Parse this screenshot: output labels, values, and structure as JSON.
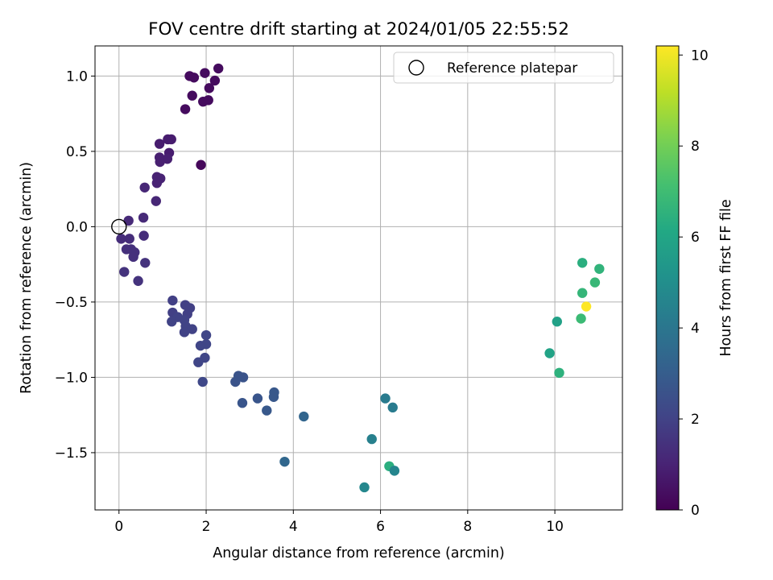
{
  "chart_data": {
    "type": "scatter",
    "title": "FOV centre drift starting at 2024/01/05 22:55:52",
    "xlabel": "Angular distance from reference (arcmin)",
    "ylabel": "Rotation from reference (arcmin)",
    "xlim": [
      -0.55,
      11.55
    ],
    "ylim": [
      -1.88,
      1.2
    ],
    "x_ticks": [
      "0",
      "2",
      "4",
      "6",
      "8",
      "10"
    ],
    "y_ticks": [
      "1.0",
      "0.5",
      "0.0",
      "−0.5",
      "−1.0",
      "−1.5"
    ],
    "grid": true,
    "legend": {
      "position": "top-right",
      "entries": [
        "Reference platepar"
      ]
    },
    "colorbar": {
      "label": "Hours from first FF file",
      "range": [
        0,
        10.2
      ],
      "ticks": [
        "0",
        "2",
        "4",
        "6",
        "8",
        "10"
      ],
      "colormap": "viridis"
    },
    "reference_point": {
      "x": 0,
      "y": 0
    },
    "points": [
      {
        "x": 2.28,
        "y": 1.05,
        "c": 0.3
      },
      {
        "x": 1.97,
        "y": 1.02,
        "c": 0.3
      },
      {
        "x": 1.62,
        "y": 1.0,
        "c": 0.3
      },
      {
        "x": 1.72,
        "y": 0.99,
        "c": 0.3
      },
      {
        "x": 2.2,
        "y": 0.97,
        "c": 0.3
      },
      {
        "x": 2.07,
        "y": 0.92,
        "c": 0.3
      },
      {
        "x": 1.68,
        "y": 0.87,
        "c": 0.3
      },
      {
        "x": 1.93,
        "y": 0.83,
        "c": 0.3
      },
      {
        "x": 2.05,
        "y": 0.84,
        "c": 0.3
      },
      {
        "x": 1.52,
        "y": 0.78,
        "c": 0.3
      },
      {
        "x": 1.88,
        "y": 0.41,
        "c": 0.2
      },
      {
        "x": 1.12,
        "y": 0.58,
        "c": 0.8
      },
      {
        "x": 1.2,
        "y": 0.58,
        "c": 0.8
      },
      {
        "x": 0.93,
        "y": 0.55,
        "c": 0.8
      },
      {
        "x": 1.15,
        "y": 0.49,
        "c": 0.8
      },
      {
        "x": 0.93,
        "y": 0.46,
        "c": 0.9
      },
      {
        "x": 1.11,
        "y": 0.45,
        "c": 0.9
      },
      {
        "x": 0.94,
        "y": 0.43,
        "c": 0.9
      },
      {
        "x": 0.87,
        "y": 0.33,
        "c": 1.0
      },
      {
        "x": 0.95,
        "y": 0.32,
        "c": 1.0
      },
      {
        "x": 0.87,
        "y": 0.29,
        "c": 1.0
      },
      {
        "x": 0.59,
        "y": 0.26,
        "c": 1.1
      },
      {
        "x": 0.85,
        "y": 0.17,
        "c": 1.1
      },
      {
        "x": 0.56,
        "y": 0.06,
        "c": 1.2
      },
      {
        "x": 0.22,
        "y": 0.04,
        "c": 1.2
      },
      {
        "x": 0.57,
        "y": -0.06,
        "c": 1.3
      },
      {
        "x": 0.05,
        "y": -0.08,
        "c": 1.3
      },
      {
        "x": 0.24,
        "y": -0.08,
        "c": 1.3
      },
      {
        "x": 0.17,
        "y": -0.15,
        "c": 1.4
      },
      {
        "x": 0.28,
        "y": -0.15,
        "c": 1.4
      },
      {
        "x": 0.36,
        "y": -0.17,
        "c": 1.4
      },
      {
        "x": 0.33,
        "y": -0.2,
        "c": 1.4
      },
      {
        "x": 0.6,
        "y": -0.24,
        "c": 1.5
      },
      {
        "x": 0.12,
        "y": -0.3,
        "c": 1.5
      },
      {
        "x": 0.44,
        "y": -0.36,
        "c": 1.5
      },
      {
        "x": 1.23,
        "y": -0.49,
        "c": 1.9
      },
      {
        "x": 1.52,
        "y": -0.52,
        "c": 1.9
      },
      {
        "x": 1.63,
        "y": -0.54,
        "c": 1.9
      },
      {
        "x": 1.23,
        "y": -0.57,
        "c": 1.9
      },
      {
        "x": 1.57,
        "y": -0.58,
        "c": 1.9
      },
      {
        "x": 1.35,
        "y": -0.6,
        "c": 2.0
      },
      {
        "x": 1.5,
        "y": -0.62,
        "c": 2.0
      },
      {
        "x": 1.21,
        "y": -0.63,
        "c": 2.0
      },
      {
        "x": 1.53,
        "y": -0.66,
        "c": 2.0
      },
      {
        "x": 1.68,
        "y": -0.68,
        "c": 2.0
      },
      {
        "x": 1.5,
        "y": -0.7,
        "c": 2.0
      },
      {
        "x": 2.0,
        "y": -0.72,
        "c": 2.1
      },
      {
        "x": 2.0,
        "y": -0.78,
        "c": 2.1
      },
      {
        "x": 1.87,
        "y": -0.79,
        "c": 2.1
      },
      {
        "x": 1.97,
        "y": -0.87,
        "c": 2.1
      },
      {
        "x": 1.82,
        "y": -0.9,
        "c": 2.1
      },
      {
        "x": 1.92,
        "y": -1.03,
        "c": 2.2
      },
      {
        "x": 2.74,
        "y": -0.99,
        "c": 2.6
      },
      {
        "x": 2.85,
        "y": -1.0,
        "c": 2.6
      },
      {
        "x": 2.67,
        "y": -1.03,
        "c": 2.6
      },
      {
        "x": 3.56,
        "y": -1.1,
        "c": 2.8
      },
      {
        "x": 3.55,
        "y": -1.13,
        "c": 2.8
      },
      {
        "x": 3.18,
        "y": -1.14,
        "c": 2.7
      },
      {
        "x": 2.83,
        "y": -1.17,
        "c": 2.7
      },
      {
        "x": 3.39,
        "y": -1.22,
        "c": 2.8
      },
      {
        "x": 4.24,
        "y": -1.26,
        "c": 3.3
      },
      {
        "x": 3.8,
        "y": -1.56,
        "c": 3.4
      },
      {
        "x": 6.11,
        "y": -1.14,
        "c": 4.2
      },
      {
        "x": 6.28,
        "y": -1.2,
        "c": 4.2
      },
      {
        "x": 5.8,
        "y": -1.41,
        "c": 4.4
      },
      {
        "x": 6.2,
        "y": -1.59,
        "c": 6.4
      },
      {
        "x": 6.32,
        "y": -1.62,
        "c": 4.6
      },
      {
        "x": 5.63,
        "y": -1.73,
        "c": 4.7
      },
      {
        "x": 10.63,
        "y": -0.24,
        "c": 6.4
      },
      {
        "x": 11.02,
        "y": -0.28,
        "c": 6.6
      },
      {
        "x": 10.92,
        "y": -0.37,
        "c": 6.8
      },
      {
        "x": 10.63,
        "y": -0.44,
        "c": 6.7
      },
      {
        "x": 10.72,
        "y": -0.53,
        "c": 10.2
      },
      {
        "x": 10.6,
        "y": -0.61,
        "c": 6.9
      },
      {
        "x": 10.05,
        "y": -0.63,
        "c": 5.8
      },
      {
        "x": 9.88,
        "y": -0.84,
        "c": 5.9
      },
      {
        "x": 10.1,
        "y": -0.97,
        "c": 6.5
      }
    ]
  }
}
